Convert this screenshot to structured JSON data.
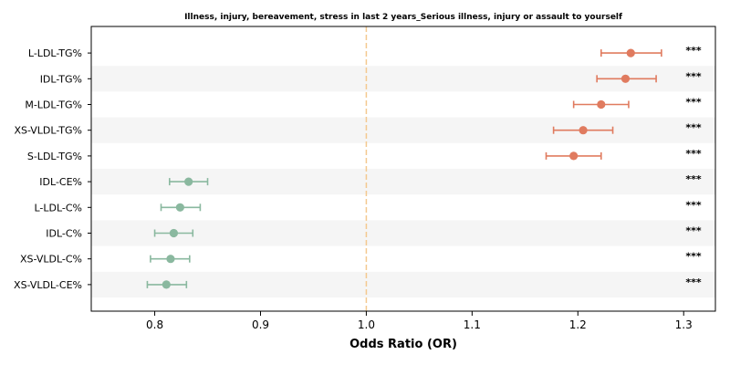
{
  "chart_data": {
    "type": "forest",
    "title": "Illness, injury, bereavement, stress in last 2 years_Serious illness, injury or assault to yourself",
    "xlabel": "Odds Ratio (OR)",
    "xlim": [
      0.74,
      1.33
    ],
    "x_ticks": [
      "0.8",
      "0.9",
      "1.0",
      "1.1",
      "1.2",
      "1.3"
    ],
    "reference_line": 1.0,
    "rows": [
      {
        "label": "L-LDL-TG%",
        "or": 1.25,
        "lower": 1.222,
        "upper": 1.279,
        "sig": "***",
        "direction": "increased"
      },
      {
        "label": "IDL-TG%",
        "or": 1.245,
        "lower": 1.218,
        "upper": 1.274,
        "sig": "***",
        "direction": "increased"
      },
      {
        "label": "M-LDL-TG%",
        "or": 1.222,
        "lower": 1.196,
        "upper": 1.248,
        "sig": "***",
        "direction": "increased"
      },
      {
        "label": "XS-VLDL-TG%",
        "or": 1.205,
        "lower": 1.177,
        "upper": 1.233,
        "sig": "***",
        "direction": "increased"
      },
      {
        "label": "S-LDL-TG%",
        "or": 1.196,
        "lower": 1.17,
        "upper": 1.222,
        "sig": "***",
        "direction": "increased"
      },
      {
        "label": "IDL-CE%",
        "or": 0.832,
        "lower": 0.814,
        "upper": 0.85,
        "sig": "***",
        "direction": "decreased"
      },
      {
        "label": "L-LDL-C%",
        "or": 0.824,
        "lower": 0.806,
        "upper": 0.843,
        "sig": "***",
        "direction": "decreased"
      },
      {
        "label": "IDL-C%",
        "or": 0.818,
        "lower": 0.8,
        "upper": 0.836,
        "sig": "***",
        "direction": "decreased"
      },
      {
        "label": "XS-VLDL-C%",
        "or": 0.815,
        "lower": 0.796,
        "upper": 0.833,
        "sig": "***",
        "direction": "decreased"
      },
      {
        "label": "XS-VLDL-CE%",
        "or": 0.811,
        "lower": 0.793,
        "upper": 0.83,
        "sig": "***",
        "direction": "decreased"
      }
    ],
    "colors": {
      "increased": "#e07b5f",
      "decreased": "#8ab89f",
      "reference_line": "#f4c98f",
      "band": "#f5f5f5"
    },
    "grid": false
  }
}
